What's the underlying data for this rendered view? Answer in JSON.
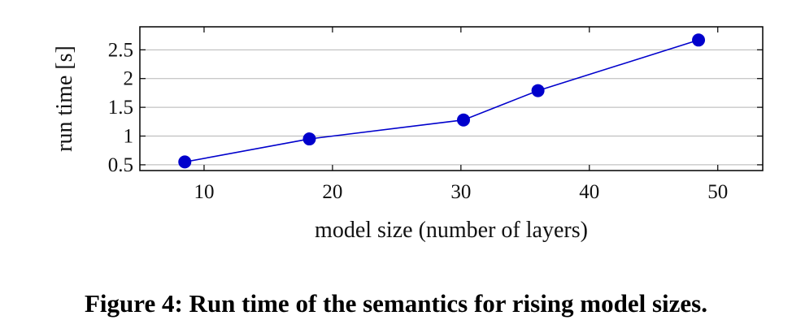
{
  "chart_data": {
    "type": "line",
    "xlabel": "model size (number of layers)",
    "ylabel": "run time [s]",
    "xlim": [
      5,
      53.5
    ],
    "ylim": [
      0.4,
      2.9
    ],
    "x_ticks": [
      10,
      20,
      30,
      40,
      50
    ],
    "y_ticks": [
      0.5,
      1,
      1.5,
      2,
      2.5
    ],
    "x_tick_labels": [
      "10",
      "20",
      "30",
      "40",
      "50"
    ],
    "y_tick_labels": [
      "0.5",
      "1",
      "1.5",
      "2",
      "2.5"
    ],
    "grid": "horizontal",
    "legend": "none",
    "series": [
      {
        "color": "#0000cc",
        "marker": "circle",
        "x": [
          8.5,
          18.2,
          30.2,
          36.0,
          48.5
        ],
        "y": [
          0.55,
          0.95,
          1.28,
          1.79,
          2.67
        ]
      }
    ]
  },
  "caption": "Figure 4: Run time of the semantics for rising model sizes."
}
